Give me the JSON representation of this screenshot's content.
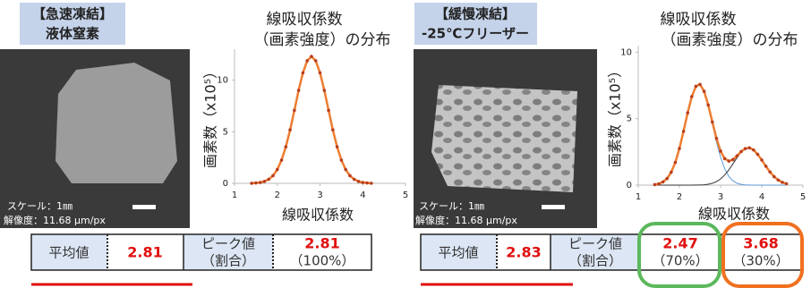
{
  "panels": [
    {
      "label": [
        "【急速凍結】",
        "液体窒素"
      ],
      "scale": "スケール：1㎜",
      "resolution": "解像度：11.68 µm/px",
      "table": {
        "mean_label": "平均値",
        "mean": 2.81,
        "peak_label": [
          "ピーク値",
          "（割合）"
        ],
        "peaks": [
          {
            "value": 2.81,
            "ratio": "（100%）"
          }
        ]
      }
    },
    {
      "label": [
        "【緩慢凍結】",
        "-25℃フリーザー"
      ],
      "scale": "スケール：1㎜",
      "resolution": "解像度：11.68 µm/px",
      "table": {
        "mean_label": "平均値",
        "mean": 2.83,
        "peak_label": [
          "ピーク値",
          "（割合）"
        ],
        "peaks": [
          {
            "value": 2.47,
            "ratio": "（70%）"
          },
          {
            "value": 3.68,
            "ratio": "（30%）"
          }
        ]
      }
    }
  ],
  "chart_data": [
    {
      "type": "line",
      "title": "線吸収係数",
      "subtitle": "（画素強度）の分布",
      "xlabel": "線吸収係数",
      "ylabel": "画素数（x10⁵）",
      "xlim": [
        1,
        5
      ],
      "xticks": [
        1,
        2,
        3,
        4,
        5
      ],
      "ylim": [
        0,
        13
      ],
      "yticks": [
        0,
        5,
        10
      ],
      "x": [
        1.4,
        1.5,
        1.6,
        1.7,
        1.8,
        1.9,
        2.0,
        2.1,
        2.2,
        2.3,
        2.4,
        2.5,
        2.6,
        2.7,
        2.8,
        2.9,
        3.0,
        3.1,
        3.2,
        3.3,
        3.4,
        3.5,
        3.6,
        3.7,
        3.8,
        3.9,
        4.0,
        4.1,
        4.2
      ],
      "series": [
        {
          "color": "#ed7d31",
          "marker_color": "#b8401f",
          "values": [
            0.01,
            0.04,
            0.08,
            0.19,
            0.39,
            0.74,
            1.34,
            2.25,
            3.54,
            5.18,
            7.07,
            9.01,
            10.71,
            11.88,
            12.3,
            11.88,
            10.71,
            9.01,
            7.07,
            5.18,
            3.54,
            2.25,
            1.34,
            0.74,
            0.39,
            0.19,
            0.08,
            0.04,
            0.01
          ]
        }
      ]
    },
    {
      "type": "line",
      "title": "線吸収係数",
      "subtitle": "（画素強度）の分布",
      "xlabel": "線吸収係数",
      "ylabel": "画素数（x10⁵）",
      "xlim": [
        1,
        5
      ],
      "xticks": [
        1,
        2,
        3,
        4,
        5
      ],
      "ylim": [
        0,
        10.5
      ],
      "yticks": [
        0,
        5,
        10
      ],
      "x": [
        1.4,
        1.5,
        1.6,
        1.7,
        1.8,
        1.9,
        2.0,
        2.1,
        2.2,
        2.3,
        2.4,
        2.5,
        2.6,
        2.7,
        2.8,
        2.9,
        3.0,
        3.1,
        3.2,
        3.3,
        3.4,
        3.5,
        3.6,
        3.7,
        3.8,
        3.9,
        4.0,
        4.1,
        4.2,
        4.3,
        4.4,
        4.5,
        4.6
      ],
      "series": [
        {
          "color": "#5b9bd5",
          "values": [
            0.04,
            0.1,
            0.24,
            0.5,
            0.97,
            1.71,
            2.76,
            4.05,
            5.44,
            6.66,
            7.43,
            7.57,
            7.03,
            5.96,
            4.61,
            3.25,
            2.09,
            1.23,
            0.66,
            0.32,
            0.14,
            0.06,
            0.02,
            0.01,
            0,
            0,
            0,
            0,
            0,
            0,
            0,
            0,
            0
          ]
        },
        {
          "color": "#333333",
          "values": [
            0,
            0,
            0,
            0,
            0,
            0,
            0,
            0,
            0,
            0,
            0.01,
            0.01,
            0.03,
            0.07,
            0.14,
            0.27,
            0.47,
            0.76,
            1.15,
            1.6,
            2.07,
            2.47,
            2.73,
            2.8,
            2.65,
            2.32,
            1.89,
            1.42,
            0.99,
            0.64,
            0.38,
            0.21,
            0.11
          ]
        },
        {
          "color": "#ed7d31",
          "marker_color": "#b8401f",
          "values": [
            0.04,
            0.1,
            0.24,
            0.5,
            0.97,
            1.71,
            2.76,
            4.05,
            5.44,
            6.66,
            7.44,
            7.58,
            7.06,
            6.03,
            4.75,
            3.52,
            2.56,
            1.99,
            1.81,
            1.92,
            2.21,
            2.53,
            2.75,
            2.81,
            2.65,
            2.32,
            1.89,
            1.42,
            0.99,
            0.64,
            0.38,
            0.21,
            0.11
          ]
        }
      ]
    }
  ]
}
